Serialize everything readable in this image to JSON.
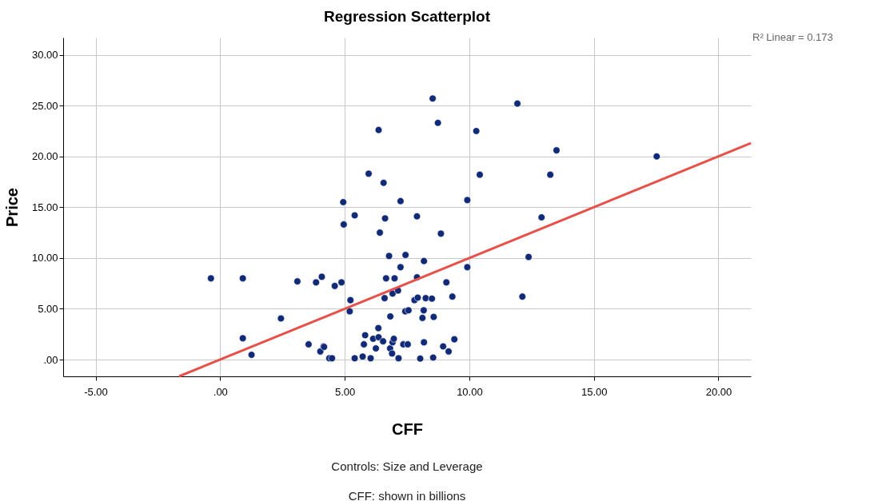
{
  "chart_data": {
    "type": "scatter",
    "title": "Regression Scatterplot",
    "xlabel": "CFF",
    "ylabel": "Price",
    "annotations": [
      "R² Linear = 0.173",
      "Controls: Size and Leverage",
      "CFF: shown in billions"
    ],
    "xlim": [
      -6.3,
      21.3
    ],
    "ylim": [
      -1.65,
      31.7
    ],
    "xticks": [
      {
        "value": -5,
        "label": "-5.00"
      },
      {
        "value": 0,
        "label": ".00"
      },
      {
        "value": 5,
        "label": "5.00"
      },
      {
        "value": 10,
        "label": "10.00"
      },
      {
        "value": 15,
        "label": "15.00"
      },
      {
        "value": 20,
        "label": "20.00"
      }
    ],
    "yticks": [
      {
        "value": 0,
        "label": ".00"
      },
      {
        "value": 5,
        "label": "5.00"
      },
      {
        "value": 10,
        "label": "10.00"
      },
      {
        "value": 15,
        "label": "15.00"
      },
      {
        "value": 20,
        "label": "20.00"
      },
      {
        "value": 25,
        "label": "25.00"
      },
      {
        "value": 30,
        "label": "30.00"
      }
    ],
    "grid": true,
    "series": [
      {
        "marker": "circle",
        "color": "#102a78",
        "x": [
          -0.37,
          0.91,
          0.91,
          1.26,
          2.44,
          3.1,
          3.55,
          3.85,
          4.08,
          4.02,
          4.15,
          4.17,
          4.38,
          4.49,
          4.6,
          4.87,
          4.94,
          4.96,
          5.2,
          5.23,
          5.4,
          5.4,
          5.72,
          5.77,
          5.82,
          5.96,
          6.04,
          6.14,
          6.25,
          6.35,
          6.36,
          6.36,
          6.41,
          6.54,
          6.56,
          6.6,
          6.62,
          6.66,
          6.78,
          6.82,
          6.83,
          6.9,
          6.92,
          6.92,
          6.97,
          7.0,
          7.14,
          7.16,
          7.24,
          7.24,
          7.35,
          7.43,
          7.44,
          7.53,
          7.56,
          7.8,
          7.9,
          7.9,
          7.93,
          8.03,
          8.12,
          8.17,
          8.18,
          8.18,
          8.25,
          8.5,
          8.53,
          8.55,
          8.57,
          8.74,
          8.86,
          8.95,
          9.08,
          9.17,
          9.32,
          9.4,
          9.92,
          9.92,
          10.28,
          10.42,
          11.93,
          12.13,
          12.38,
          12.9,
          13.25,
          13.5,
          17.52
        ],
        "values": [
          8.0,
          8.0,
          2.1,
          0.47,
          4.05,
          7.7,
          1.5,
          7.6,
          8.15,
          0.8,
          1.3,
          1.25,
          0.13,
          0.13,
          7.25,
          7.6,
          15.5,
          13.3,
          4.75,
          5.85,
          14.2,
          0.13,
          0.3,
          1.5,
          2.4,
          18.3,
          0.13,
          2.05,
          1.1,
          3.1,
          22.6,
          2.2,
          12.5,
          1.8,
          17.4,
          6.05,
          13.9,
          8.0,
          10.2,
          1.1,
          4.25,
          0.6,
          6.5,
          1.7,
          2.05,
          8.0,
          6.8,
          0.13,
          15.6,
          9.1,
          1.5,
          4.75,
          10.3,
          1.5,
          4.85,
          5.85,
          14.1,
          8.1,
          6.1,
          0.1,
          4.1,
          4.85,
          9.7,
          1.7,
          6.05,
          6.0,
          25.7,
          0.2,
          4.2,
          23.3,
          12.4,
          1.3,
          7.6,
          0.8,
          6.2,
          2.0,
          15.7,
          9.1,
          22.5,
          18.2,
          25.2,
          6.2,
          10.1,
          14.0,
          18.2,
          20.6,
          20.0
        ]
      },
      {
        "type": "line",
        "color": "#e8514a",
        "x": [
          -1.65,
          21.3
        ],
        "values": [
          -1.65,
          21.3
        ]
      }
    ]
  }
}
